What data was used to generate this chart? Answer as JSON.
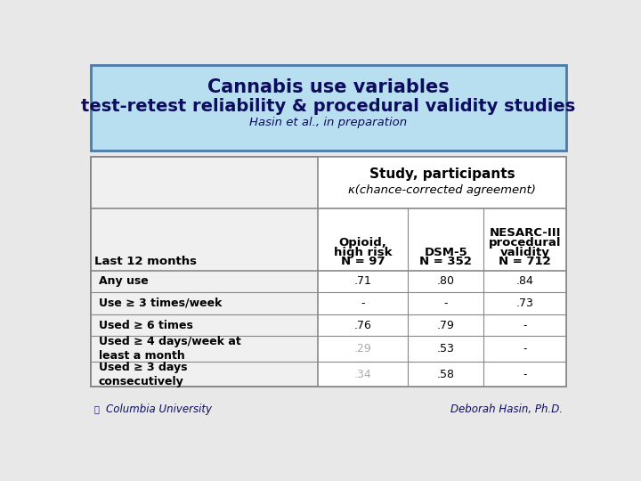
{
  "title_line1": "Cannabis use variables",
  "title_line2": "test-retest reliability & procedural validity studies",
  "subtitle": "Hasin et al., in preparation",
  "title_bg_color": "#b8dff0",
  "title_border_color": "#4a7aaa",
  "table_header_row1": "Study, participants",
  "table_header_row2": "κ(chance-corrected agreement)",
  "row_label_header": "Last 12 months",
  "rows": [
    {
      "label": "Any use",
      "values": [
        ".71",
        ".80",
        ".84"
      ],
      "grayed": [
        false,
        false,
        false
      ]
    },
    {
      "label": "Use ≥ 3 times/week",
      "values": [
        "-",
        "-",
        ".73"
      ],
      "grayed": [
        false,
        false,
        false
      ]
    },
    {
      "label": "Used ≥ 6 times",
      "values": [
        ".76",
        ".79",
        "-"
      ],
      "grayed": [
        false,
        false,
        false
      ]
    },
    {
      "label": "Used ≥ 4 days/week at\nleast a month",
      "values": [
        ".29",
        ".53",
        "-"
      ],
      "grayed": [
        true,
        false,
        false
      ]
    },
    {
      "label": "Used ≥ 3 days\nconsecutively",
      "values": [
        ".34",
        ".58",
        "-"
      ],
      "grayed": [
        true,
        false,
        false
      ]
    }
  ],
  "footer_left": "Columbia University",
  "footer_right": "Deborah Hasin, Ph.D.",
  "page_bg": "#e8e8e8",
  "table_bg": "#f0f0f0",
  "white": "#ffffff",
  "dark_navy": "#0d0d5e",
  "black": "#000000",
  "table_border": "#888888",
  "gray_val": "#aaaaaa"
}
